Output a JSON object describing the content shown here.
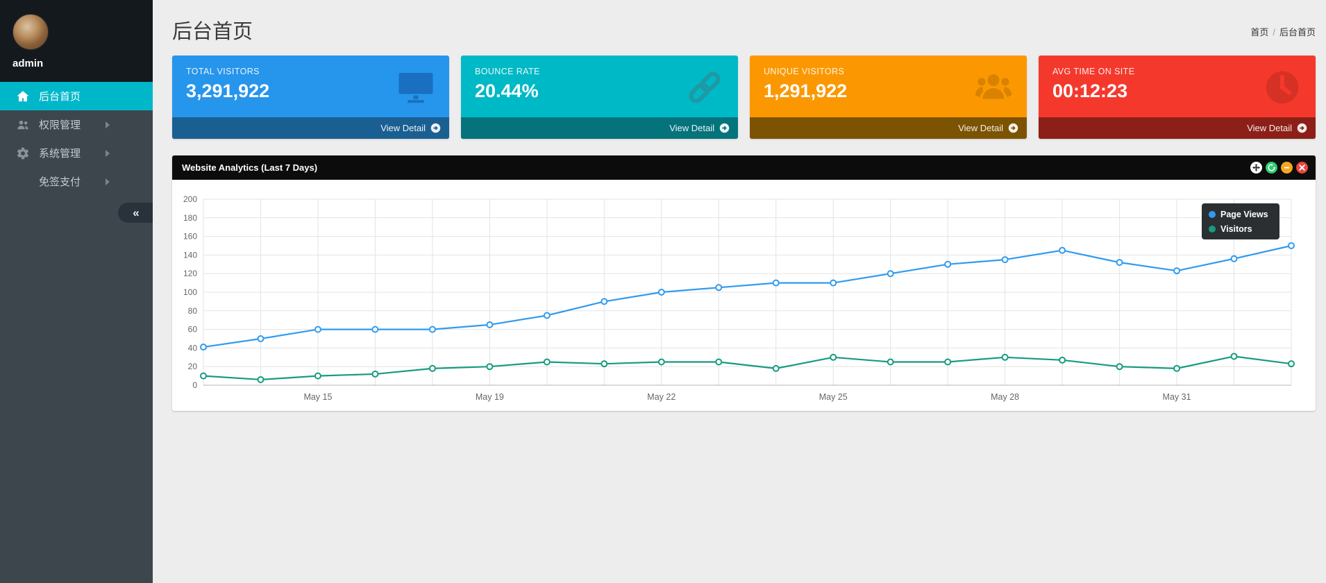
{
  "sidebar": {
    "username": "admin",
    "items": [
      {
        "label": "后台首页",
        "icon": "home-icon",
        "active": true,
        "has_children": false
      },
      {
        "label": "权限管理",
        "icon": "users-icon",
        "active": false,
        "has_children": true
      },
      {
        "label": "系统管理",
        "icon": "gear-icon",
        "active": false,
        "has_children": true
      },
      {
        "label": "免签支付",
        "icon": "",
        "active": false,
        "has_children": true
      }
    ],
    "collapse_label": "«",
    "active_color": "#00b7ca"
  },
  "header": {
    "title": "后台首页",
    "breadcrumb": {
      "home": "首页",
      "separator": "/",
      "current": "后台首页"
    }
  },
  "cards": [
    {
      "label": "TOTAL VISITORS",
      "value": "3,291,922",
      "icon": "monitor-icon",
      "detail_label": "View Detail",
      "color": "#2695ec",
      "footer_color": "#1a5f92",
      "icon_color": "#1a6fc0"
    },
    {
      "label": "BOUNCE RATE",
      "value": "20.44%",
      "icon": "link-icon",
      "detail_label": "View Detail",
      "color": "#00b9c6",
      "footer_color": "#04737c",
      "icon_color": "#1d9aa5"
    },
    {
      "label": "UNIQUE VISITORS",
      "value": "1,291,922",
      "icon": "group-icon",
      "detail_label": "View Detail",
      "color": "#fb9801",
      "footer_color": "#7c5301",
      "icon_color": "#d98200"
    },
    {
      "label": "AVG TIME ON SITE",
      "value": "00:12:23",
      "icon": "clock-icon",
      "detail_label": "View Detail",
      "color": "#f4392c",
      "footer_color": "#8c2018",
      "icon_color": "#d63125"
    }
  ],
  "panel": {
    "title": "Website Analytics (Last 7 Days)",
    "actions": [
      {
        "name": "move",
        "color": "#ffffff"
      },
      {
        "name": "refresh",
        "color": "#2ecc71"
      },
      {
        "name": "collapse",
        "color": "#f5a623"
      },
      {
        "name": "close",
        "color": "#e8473f"
      }
    ]
  },
  "chart_data": {
    "type": "line",
    "title": "Website Analytics (Last 7 Days)",
    "ylim": [
      0,
      200
    ],
    "y_step": 20,
    "grid": true,
    "legend_position": "top-right",
    "x_tick_labels": [
      {
        "index": 2,
        "label": "May 15"
      },
      {
        "index": 5,
        "label": "May 19"
      },
      {
        "index": 8,
        "label": "May 22"
      },
      {
        "index": 11,
        "label": "May 25"
      },
      {
        "index": 14,
        "label": "May 28"
      },
      {
        "index": 17,
        "label": "May 31"
      }
    ],
    "series": [
      {
        "name": "Page Views",
        "color": "#2f9bf0",
        "values": [
          41,
          50,
          60,
          60,
          60,
          65,
          75,
          90,
          100,
          105,
          110,
          110,
          120,
          130,
          135,
          145,
          132,
          123,
          136,
          150
        ]
      },
      {
        "name": "Visitors",
        "color": "#169b80",
        "values": [
          10,
          6,
          10,
          12,
          18,
          20,
          25,
          23,
          25,
          25,
          18,
          30,
          25,
          25,
          30,
          27,
          20,
          18,
          31,
          23
        ]
      }
    ]
  }
}
